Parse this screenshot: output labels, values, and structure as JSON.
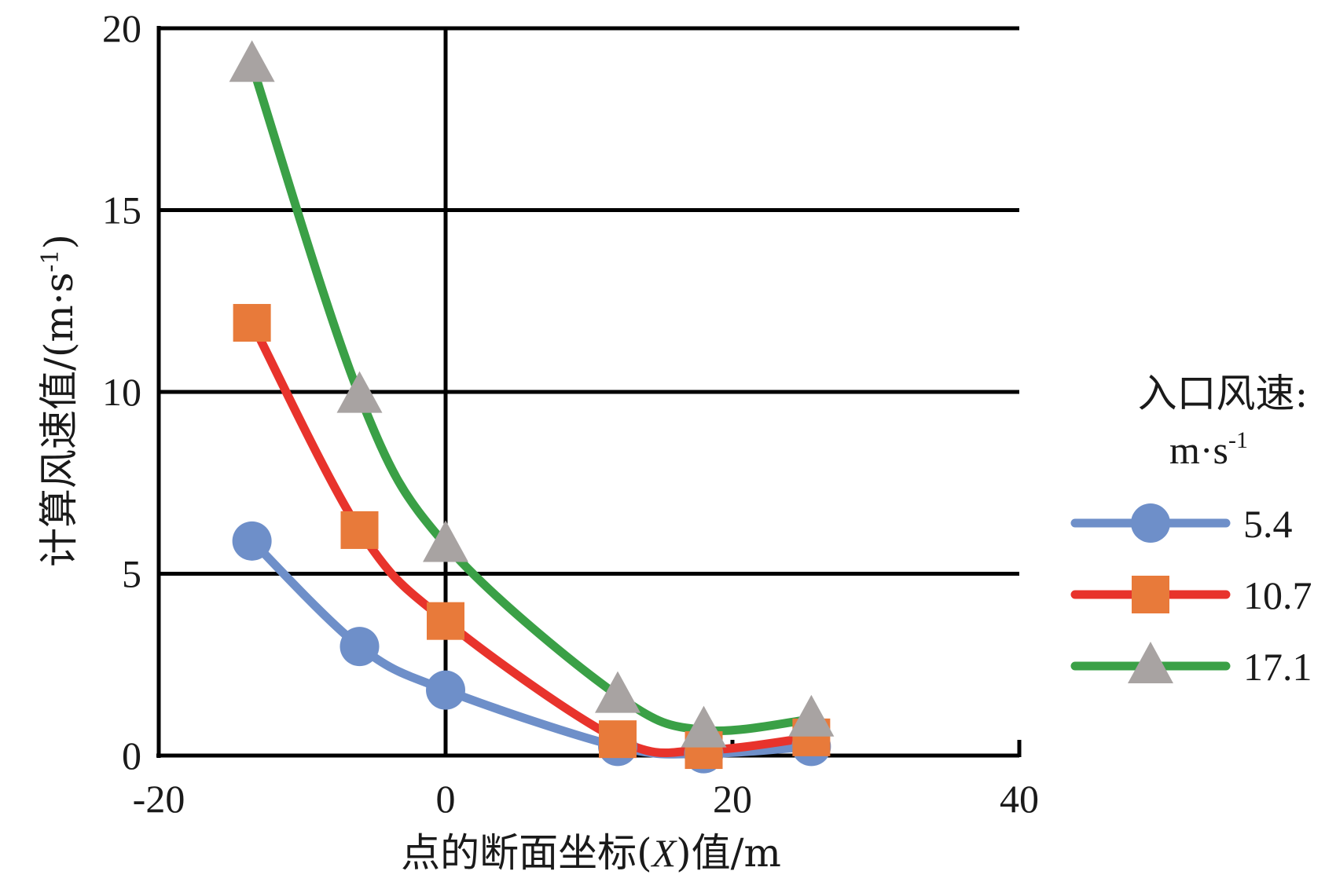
{
  "chart_data": {
    "type": "line",
    "xlabel": "点的断面坐标(X)值/m",
    "xlabel_parts": {
      "before": "点的断面坐标(",
      "italic": "X",
      "after": ")值/m"
    },
    "ylabel": "计算风速值/(m·s-1)",
    "ylabel_parts": {
      "main": "计算风速值/(m·s",
      "sup": "-1",
      "end": ")"
    },
    "xlim": [
      -20,
      40
    ],
    "ylim": [
      0,
      20
    ],
    "xticks": [
      "-20",
      "0",
      "20",
      "40"
    ],
    "yticks": [
      "0",
      "5",
      "10",
      "15",
      "20"
    ],
    "grid": {
      "horizontal": true,
      "vertical_at_zero": true
    },
    "legend": {
      "position": "right",
      "title_line1": "入口风速:",
      "title_unit_main": "m·s",
      "title_unit_sup": "-1"
    },
    "series": [
      {
        "name": "5.4",
        "color": "#6e8fc9",
        "marker": "circle",
        "marker_color": "#6e8fc9",
        "x": [
          -13.5,
          -6,
          0,
          12,
          18,
          25.5
        ],
        "y": [
          5.9,
          3.0,
          1.8,
          0.25,
          0.05,
          0.25
        ]
      },
      {
        "name": "10.7",
        "color": "#e8332c",
        "marker": "square",
        "marker_color": "#e87a3a",
        "x": [
          -13.5,
          -6,
          0,
          12,
          18,
          25.5
        ],
        "y": [
          11.9,
          6.2,
          3.7,
          0.45,
          0.15,
          0.5
        ]
      },
      {
        "name": "17.1",
        "color": "#3aa046",
        "marker": "triangle",
        "marker_color": "#a8a3a2",
        "x": [
          -13.5,
          -6,
          0,
          12,
          18,
          25.5
        ],
        "y": [
          19.0,
          9.9,
          5.8,
          1.65,
          0.7,
          1.0
        ]
      }
    ]
  }
}
